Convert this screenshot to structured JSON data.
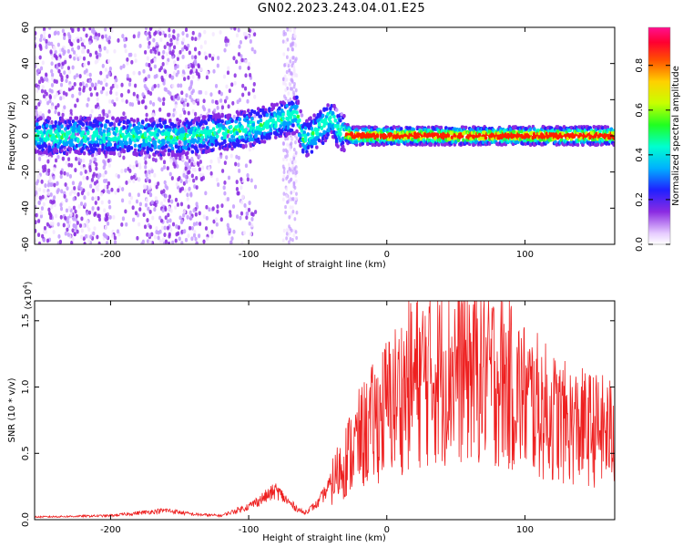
{
  "page_title": "GN02.2023.243.04.01.E25",
  "colors": {
    "snr_line": "#ee2020",
    "axes": "#000000",
    "background": "#ffffff"
  },
  "chart_data": [
    {
      "type": "heatmap",
      "title": "",
      "xlabel": "Height of straight line (km)",
      "ylabel": "Frequency (Hz)",
      "xlim": [
        -255,
        165
      ],
      "ylim": [
        -60,
        60
      ],
      "x_ticks": [
        -200,
        -100,
        0,
        100
      ],
      "y_ticks": [
        -60,
        -40,
        -20,
        0,
        20,
        40,
        60
      ],
      "x_tick_labels": [
        "-200",
        "-100",
        "0",
        "100"
      ],
      "y_tick_labels": [
        "-60",
        "-40",
        "-20",
        "0",
        "20",
        "40",
        "60"
      ],
      "colorbar": {
        "label": "Normalized spectral amplitude",
        "range": [
          0,
          0.97
        ],
        "ticks": [
          0.0,
          0.2,
          0.4,
          0.6,
          0.8
        ],
        "tick_labels": [
          "0.0",
          "0.2",
          "0.4",
          "0.6",
          "0.8"
        ],
        "colormap": "rainbow"
      },
      "ridge": {
        "description_points_km_hz": [
          [
            -250,
            0
          ],
          [
            -200,
            0
          ],
          [
            -150,
            -1
          ],
          [
            -120,
            2
          ],
          [
            -100,
            4
          ],
          [
            -80,
            8
          ],
          [
            -65,
            12
          ],
          [
            -60,
            -3
          ],
          [
            -50,
            3
          ],
          [
            -40,
            10
          ],
          [
            -35,
            3
          ],
          [
            -25,
            0
          ],
          [
            0,
            0
          ],
          [
            165,
            0
          ]
        ]
      }
    },
    {
      "type": "line",
      "title": "",
      "xlabel": "Height of straight line (km)",
      "ylabel": "SNR (10 * v/v)",
      "y_scale_label": "(x10",
      "y_scale_exponent": "4",
      "y_scale_close": ")",
      "xlim": [
        -255,
        165
      ],
      "ylim": [
        0,
        1.65
      ],
      "x_ticks": [
        -200,
        -100,
        0,
        100
      ],
      "y_ticks": [
        0.0,
        0.5,
        1.0,
        1.5
      ],
      "x_tick_labels": [
        "-200",
        "-100",
        "0",
        "100"
      ],
      "y_tick_labels": [
        "0.0",
        "0.5",
        "1.0",
        "1.5"
      ],
      "series": [
        {
          "envelope_x": [
            -255,
            -200,
            -160,
            -140,
            -120,
            -100,
            -90,
            -80,
            -70,
            -60,
            -50,
            -40,
            -30,
            -20,
            -10,
            0,
            10,
            20,
            30,
            40,
            50,
            60,
            70,
            80,
            90,
            100,
            110,
            120,
            130,
            140,
            150,
            165
          ],
          "envelope_y": [
            0.02,
            0.03,
            0.07,
            0.04,
            0.03,
            0.1,
            0.16,
            0.22,
            0.12,
            0.05,
            0.12,
            0.28,
            0.45,
            0.6,
            0.72,
            0.85,
            0.95,
            1.05,
            1.1,
            1.12,
            1.15,
            1.15,
            1.12,
            1.08,
            1.0,
            0.92,
            0.85,
            0.78,
            0.72,
            0.7,
            0.68,
            0.65
          ]
        }
      ]
    }
  ]
}
